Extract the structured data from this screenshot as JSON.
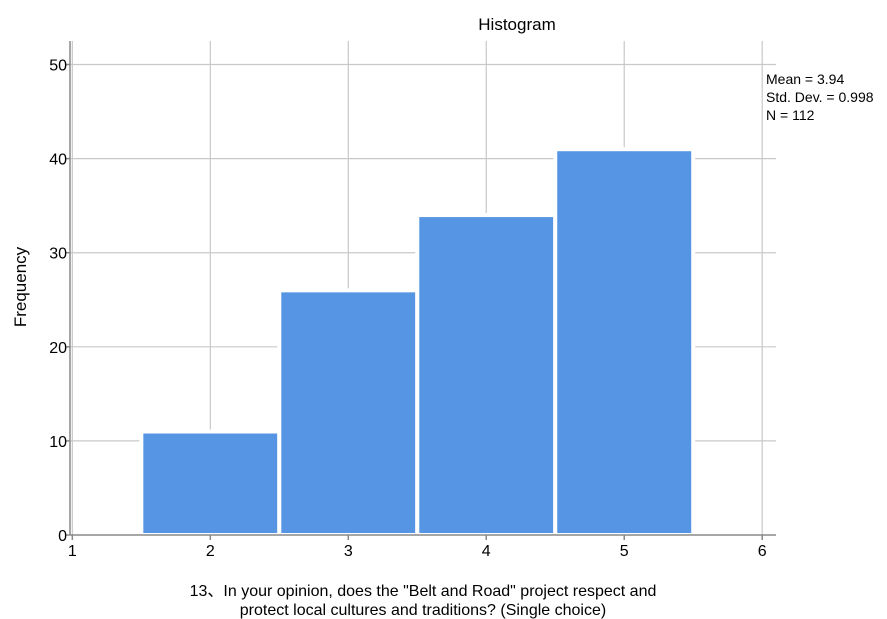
{
  "chart_data": {
    "type": "bar",
    "title": "Histogram",
    "ylabel": "Frequency",
    "xlabel_lines": [
      "13、In your opinion, does the \"Belt and Road\" project respect and",
      "protect local cultures and traditions? (Single choice)"
    ],
    "x_ticks": [
      1,
      2,
      3,
      4,
      5,
      6
    ],
    "y_ticks": [
      0,
      10,
      20,
      30,
      40,
      50
    ],
    "xlim": [
      0.983,
      6.1
    ],
    "ylim": [
      0,
      52.5
    ],
    "grid": true,
    "bars": [
      {
        "x": 2,
        "value": 11
      },
      {
        "x": 3,
        "value": 26
      },
      {
        "x": 4,
        "value": 34
      },
      {
        "x": 5,
        "value": 41
      }
    ],
    "bar_color": "#5595e3",
    "bar_edge_color": "#ffffff",
    "statistics": {
      "mean_text": "Mean = 3.94",
      "std_text": "Std. Dev. = 0.998",
      "n_text": "N = 112"
    }
  }
}
